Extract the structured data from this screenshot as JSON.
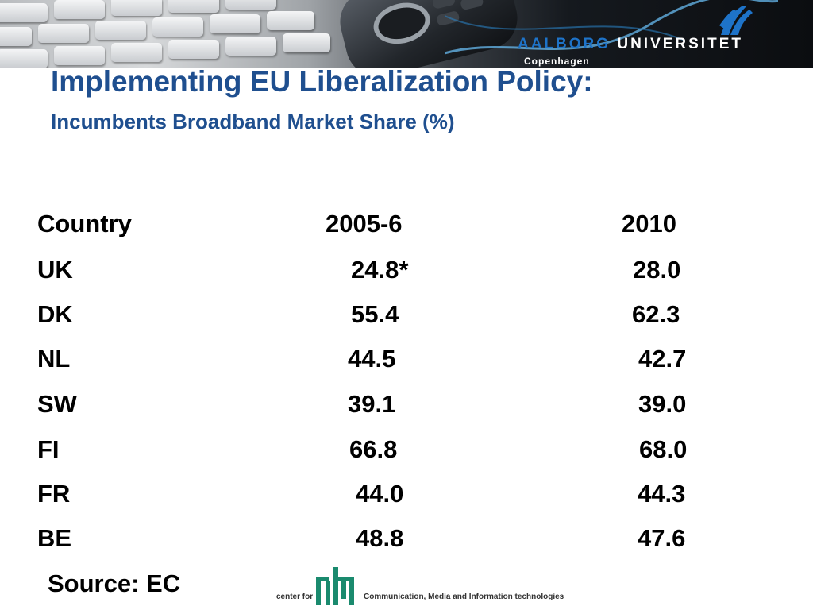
{
  "header": {
    "university_part1": "AALBORG",
    "university_part2": "UNIVERSITET",
    "campus": "Copenhagen",
    "brand_color": "#1e73c8"
  },
  "slide": {
    "title": "Implementing EU Liberalization Policy:",
    "subtitle": "Incumbents Broadband Market Share (%)",
    "title_color": "#1f4f8f"
  },
  "table": {
    "headers": [
      "Country",
      "2005-6",
      "2010"
    ],
    "rows": [
      [
        "UK",
        "24.8*",
        "28.0"
      ],
      [
        "DK",
        "55.4",
        "62.3"
      ],
      [
        "NL",
        "44.5",
        "42.7"
      ],
      [
        "SW",
        "39.1",
        "39.0"
      ],
      [
        "FI",
        "66.8",
        "68.0"
      ],
      [
        "FR",
        "44.0",
        "44.3"
      ],
      [
        "BE",
        "48.8",
        "47.6"
      ]
    ]
  },
  "source": "Source: EC",
  "footer_logo": {
    "prefix": "center for",
    "name": "Communication, Media and Information technologies",
    "icon": "cmi-logo-icon"
  }
}
